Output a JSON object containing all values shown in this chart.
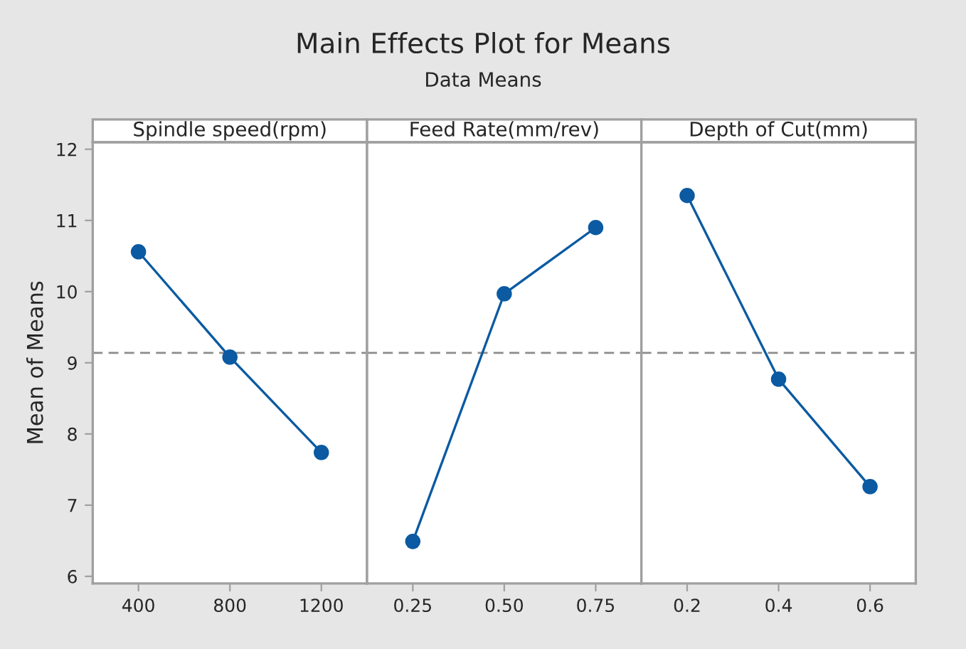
{
  "chart_data": [
    {
      "type": "line",
      "title": "Spindle speed(rpm)",
      "ylabel": "Mean of Means",
      "annotations": [
        "Main Effects Plot for Means",
        "Data Means"
      ],
      "x": [
        400,
        800,
        1200
      ],
      "series": [
        {
          "color": "#0b5aa2",
          "values": [
            10.56,
            9.08,
            7.74
          ]
        }
      ],
      "xlim": [
        200,
        1400
      ],
      "xticks": [
        400,
        800,
        1200
      ],
      "ylim": [
        5.9,
        12.1
      ],
      "yticks": [
        6,
        7,
        8,
        9,
        10,
        11,
        12
      ],
      "ref_lines": [
        {
          "axis": "y",
          "value": 9.14,
          "color": "#8c8c8c",
          "line_style": "dashed"
        }
      ],
      "marker": "circle",
      "line_style": "solid",
      "grid": false,
      "legend": false
    },
    {
      "type": "line",
      "title": "Feed Rate(mm/rev)",
      "x": [
        0.25,
        0.5,
        0.75
      ],
      "series": [
        {
          "color": "#0b5aa2",
          "values": [
            6.49,
            9.97,
            10.9
          ]
        }
      ],
      "xlim": [
        0.125,
        0.875
      ],
      "xticks": [
        0.25,
        {
          "value": 0.5,
          "label": "0.50"
        },
        0.75
      ],
      "ylim": [
        5.9,
        12.1
      ],
      "yticks": [
        6,
        7,
        8,
        9,
        10,
        11,
        12
      ],
      "tick_labels": "x",
      "ref_lines": [
        {
          "axis": "y",
          "value": 9.14,
          "color": "#8c8c8c",
          "line_style": "dashed"
        }
      ],
      "marker": "circle",
      "line_style": "solid",
      "grid": false,
      "legend": false
    },
    {
      "type": "line",
      "title": "Depth of Cut(mm)",
      "x": [
        0.2,
        0.4,
        0.6
      ],
      "series": [
        {
          "color": "#0b5aa2",
          "values": [
            11.35,
            8.77,
            7.26
          ]
        }
      ],
      "xlim": [
        0.1,
        0.7
      ],
      "xticks": [
        0.2,
        0.4,
        0.6
      ],
      "ylim": [
        5.9,
        12.1
      ],
      "yticks": [
        6,
        7,
        8,
        9,
        10,
        11,
        12
      ],
      "tick_labels": "x",
      "ref_lines": [
        {
          "axis": "y",
          "value": 9.14,
          "color": "#8c8c8c",
          "line_style": "dashed"
        }
      ],
      "marker": "circle",
      "line_style": "solid",
      "grid": false,
      "legend": false
    }
  ]
}
